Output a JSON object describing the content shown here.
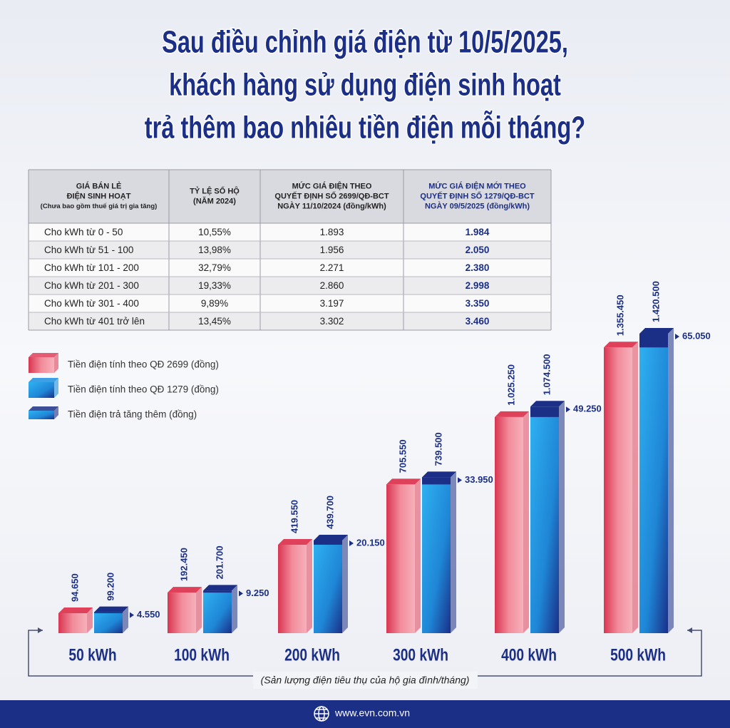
{
  "title": [
    "Sau điều chỉnh giá điện từ 10/5/2025,",
    "khách hàng sử dụng điện sinh hoạt",
    "trả thêm bao nhiêu tiền điện mỗi tháng?"
  ],
  "table": {
    "header": [
      [
        "GIÁ BÁN LẺ",
        "ĐIỆN SINH HOẠT",
        "(Chưa bao gồm thuế giá trị gia tăng)"
      ],
      [
        "TỶ LỆ SỐ HỘ",
        "(NĂM 2024)"
      ],
      [
        "MỨC GIÁ ĐIỆN THEO",
        "QUYẾT ĐỊNH SỐ 2699/QĐ-BCT",
        "NGÀY 11/10/2024 (đồng/kWh)"
      ],
      [
        "MỨC GIÁ ĐIỆN MỚI THEO",
        "QUYẾT ĐỊNH SỐ 1279/QĐ-BCT",
        "NGÀY 09/5/2025 (đồng/kWh)"
      ]
    ],
    "rows": [
      [
        "Cho kWh từ 0 - 50",
        "10,55%",
        "1.893",
        "1.984"
      ],
      [
        "Cho kWh từ  51 - 100",
        "13,98%",
        "1.956",
        "2.050"
      ],
      [
        "Cho kWh từ 101 - 200",
        "32,79%",
        "2.271",
        "2.380"
      ],
      [
        "Cho kWh từ 201 - 300",
        "19,33%",
        "2.860",
        "2.998"
      ],
      [
        "Cho kWh từ 301 - 400",
        "9,89%",
        "3.197",
        "3.350"
      ],
      [
        "Cho kWh từ 401 trở lên",
        "13,45%",
        "3.302",
        "3.460"
      ]
    ]
  },
  "chart_data": {
    "type": "bar",
    "categories": [
      "50 kWh",
      "100 kWh",
      "200 kWh",
      "300 kWh",
      "400 kWh",
      "500 kWh"
    ],
    "series": [
      {
        "name": "Tiền điện tính theo QĐ 2699 (đồng)",
        "color": "#e0415a",
        "values": [
          94650,
          192450,
          419550,
          705550,
          1025250,
          1355450
        ],
        "value_labels": [
          "94.650",
          "192.450",
          "419.550",
          "705.550",
          "1.025.250",
          "1.355.450"
        ]
      },
      {
        "name": "Tiền điện tính theo QĐ 1279 (đồng)",
        "color": "#1e8fe0",
        "values": [
          99200,
          201700,
          439700,
          739500,
          1074500,
          1420500
        ],
        "value_labels": [
          "99.200",
          "201.700",
          "439.700",
          "739.500",
          "1.074.500",
          "1.420.500"
        ]
      },
      {
        "name": "Tiền điện trả tăng thêm (đồng)",
        "color": "#1c2f86",
        "values": [
          4550,
          9250,
          20150,
          33950,
          49250,
          65050
        ],
        "value_labels": [
          "4.550",
          "9.250",
          "20.150",
          "33.950",
          "49.250",
          "65.050"
        ]
      }
    ],
    "xlabel": "(Sản lượng điện tiêu thụ của hộ gia đình/tháng)"
  },
  "footer": "www.evn.com.vn"
}
